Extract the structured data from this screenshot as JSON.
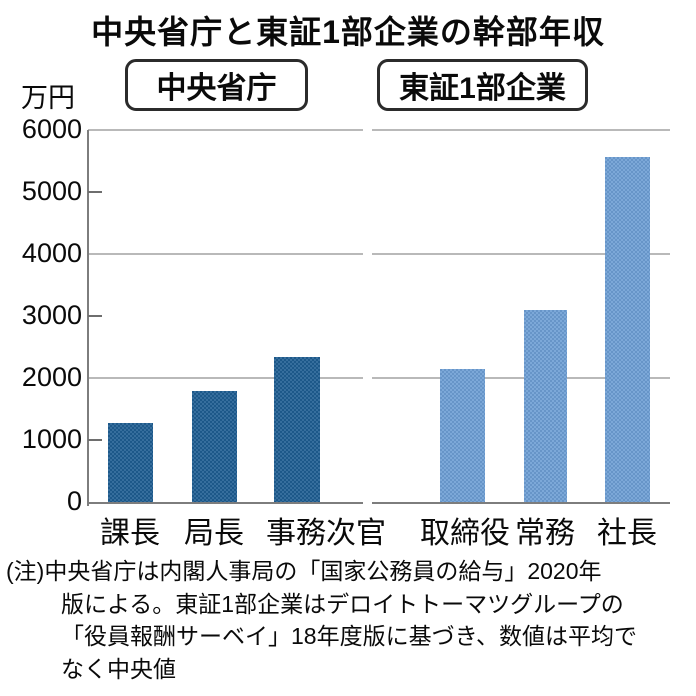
{
  "title": "中央省庁と東証1部企業の幹部年収",
  "note": {
    "lines": [
      "(注)中央省庁は内閣人事局の「国家公務員の給与」2020年",
      "版による。東証1部企業はデロイトトーマツグループの",
      "「役員報酬サーベイ」18年度版に基づき、数値は平均で",
      "なく中央値"
    ]
  },
  "chart_data": {
    "type": "bar",
    "title": "中央省庁と東証1部企業の幹部年収",
    "unit_label": "万円",
    "xlabel": "",
    "ylabel": "万円",
    "ylim": [
      0,
      6000
    ],
    "yticks": [
      0,
      1000,
      2000,
      3000,
      4000,
      5000,
      6000
    ],
    "gridline_values": [
      2000,
      4000,
      6000
    ],
    "minor_tick_values": [
      1000,
      3000,
      5000
    ],
    "grid": true,
    "legend_position": "top",
    "grid_color": "#b9b9b9",
    "axis_color": "#7d7d7d",
    "groups": [
      {
        "name": "中央省庁",
        "color": "#1f5d92",
        "categories": [
          "課長",
          "局長",
          "事務次官"
        ],
        "values": [
          1270,
          1790,
          2340
        ]
      },
      {
        "name": "東証1部企業",
        "color": "#6d9ed4",
        "categories": [
          "取締役",
          "常務",
          "社長"
        ],
        "values": [
          2150,
          3100,
          5560
        ]
      }
    ]
  }
}
